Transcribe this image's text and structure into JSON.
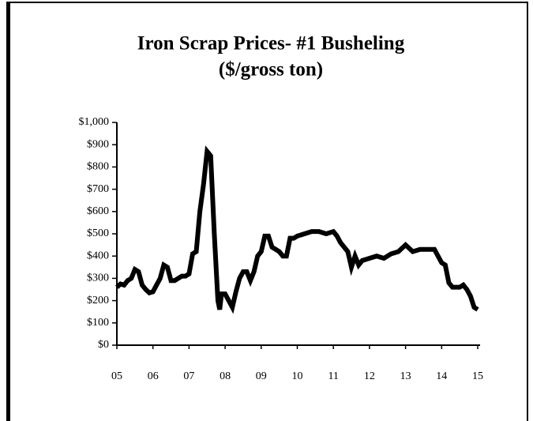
{
  "chart_data": {
    "type": "line",
    "title": [
      "Iron Scrap Prices- #1 Busheling",
      "($/gross ton)"
    ],
    "x": [
      5.0,
      5.1,
      5.2,
      5.3,
      5.4,
      5.5,
      5.6,
      5.7,
      5.8,
      5.9,
      6.0,
      6.1,
      6.2,
      6.3,
      6.4,
      6.5,
      6.6,
      6.7,
      6.8,
      6.9,
      7.0,
      7.1,
      7.2,
      7.3,
      7.4,
      7.5,
      7.6,
      7.7,
      7.8,
      7.85,
      7.9,
      8.0,
      8.1,
      8.2,
      8.3,
      8.4,
      8.5,
      8.6,
      8.7,
      8.8,
      8.9,
      9.0,
      9.1,
      9.2,
      9.3,
      9.4,
      9.5,
      9.6,
      9.7,
      9.8,
      9.9,
      10.0,
      10.2,
      10.4,
      10.6,
      10.8,
      11.0,
      11.1,
      11.2,
      11.4,
      11.5,
      11.6,
      11.7,
      11.8,
      12.0,
      12.2,
      12.4,
      12.6,
      12.8,
      13.0,
      13.2,
      13.4,
      13.6,
      13.8,
      14.0,
      14.1,
      14.2,
      14.3,
      14.5,
      14.6,
      14.7,
      14.8,
      14.9,
      15.0
    ],
    "series": [
      {
        "name": "#1 Busheling",
        "color": "#000000",
        "values": [
          260,
          275,
          270,
          290,
          300,
          340,
          330,
          270,
          250,
          235,
          240,
          270,
          300,
          360,
          350,
          290,
          290,
          300,
          310,
          310,
          320,
          410,
          420,
          600,
          720,
          870,
          850,
          500,
          200,
          160,
          230,
          230,
          200,
          170,
          240,
          300,
          330,
          330,
          290,
          330,
          400,
          420,
          490,
          490,
          440,
          430,
          420,
          400,
          400,
          480,
          480,
          490,
          500,
          510,
          510,
          500,
          510,
          490,
          460,
          420,
          350,
          400,
          360,
          380,
          390,
          400,
          390,
          410,
          420,
          450,
          420,
          430,
          430,
          430,
          370,
          360,
          280,
          260,
          260,
          270,
          250,
          220,
          170,
          160
        ]
      }
    ],
    "xlim": [
      5,
      15
    ],
    "xticks": [
      {
        "value": 5,
        "label": "05"
      },
      {
        "value": 6,
        "label": "06"
      },
      {
        "value": 7,
        "label": "07"
      },
      {
        "value": 8,
        "label": "08"
      },
      {
        "value": 9,
        "label": "09"
      },
      {
        "value": 10,
        "label": "10"
      },
      {
        "value": 11,
        "label": "11"
      },
      {
        "value": 12,
        "label": "12"
      },
      {
        "value": 13,
        "label": "13"
      },
      {
        "value": 14,
        "label": "14"
      },
      {
        "value": 15,
        "label": "15"
      }
    ],
    "ylim": [
      0,
      1000
    ],
    "yticks": [
      {
        "value": 0,
        "label": "$0"
      },
      {
        "value": 100,
        "label": "$100"
      },
      {
        "value": 200,
        "label": "$200"
      },
      {
        "value": 300,
        "label": "$300"
      },
      {
        "value": 400,
        "label": "$400"
      },
      {
        "value": 500,
        "label": "$500"
      },
      {
        "value": 600,
        "label": "$600"
      },
      {
        "value": 700,
        "label": "$700"
      },
      {
        "value": 800,
        "label": "$800"
      },
      {
        "value": 900,
        "label": "$900"
      },
      {
        "value": 1000,
        "label": "$1,000"
      }
    ],
    "grid": false
  }
}
